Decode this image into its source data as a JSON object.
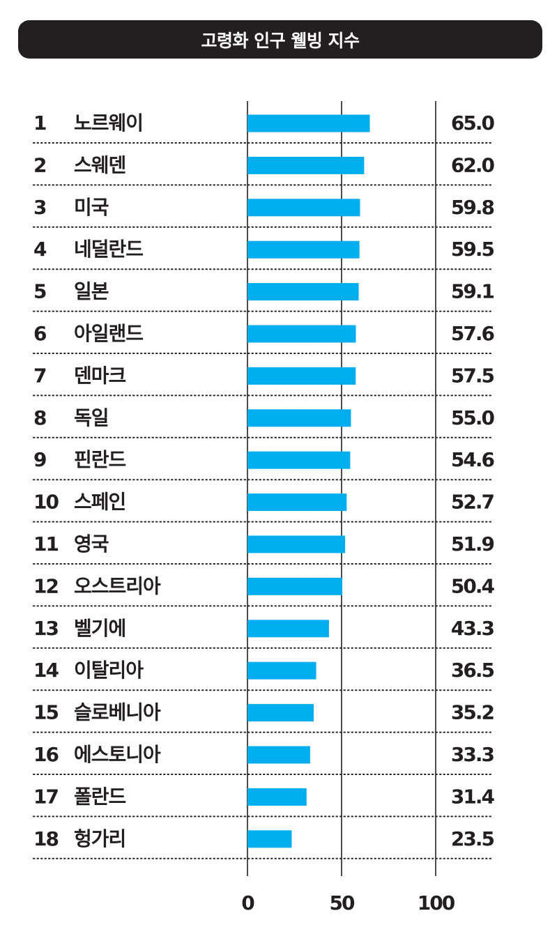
{
  "chart_data": {
    "type": "bar",
    "orientation": "horizontal",
    "title": "고령화 인구 웰빙 지수",
    "categories": [
      "노르웨이",
      "스웨덴",
      "미국",
      "네덜란드",
      "일본",
      "아일랜드",
      "덴마크",
      "독일",
      "핀란드",
      "스페인",
      "영국",
      "오스트리아",
      "벨기에",
      "이탈리아",
      "슬로베니아",
      "에스토니아",
      "폴란드",
      "헝가리"
    ],
    "ranks": [
      "1",
      "2",
      "3",
      "4",
      "5",
      "6",
      "7",
      "8",
      "9",
      "10",
      "11",
      "12",
      "13",
      "14",
      "15",
      "16",
      "17",
      "18"
    ],
    "values": [
      65.0,
      62.0,
      59.8,
      59.5,
      59.1,
      57.6,
      57.5,
      55.0,
      54.6,
      52.7,
      51.9,
      50.4,
      43.3,
      36.5,
      35.2,
      33.3,
      31.4,
      23.5
    ],
    "value_labels": [
      "65.0",
      "62.0",
      "59.8",
      "59.5",
      "59.1",
      "57.6",
      "57.5",
      "55.0",
      "54.6",
      "52.7",
      "51.9",
      "50.4",
      "43.3",
      "36.5",
      "35.2",
      "33.3",
      "31.4",
      "23.5"
    ],
    "xlim": [
      0,
      100
    ],
    "xticks": [
      "0",
      "50",
      "100"
    ],
    "grid": true,
    "legend": "none",
    "bar_color": "#00aeef",
    "text_color": "#231f20"
  }
}
